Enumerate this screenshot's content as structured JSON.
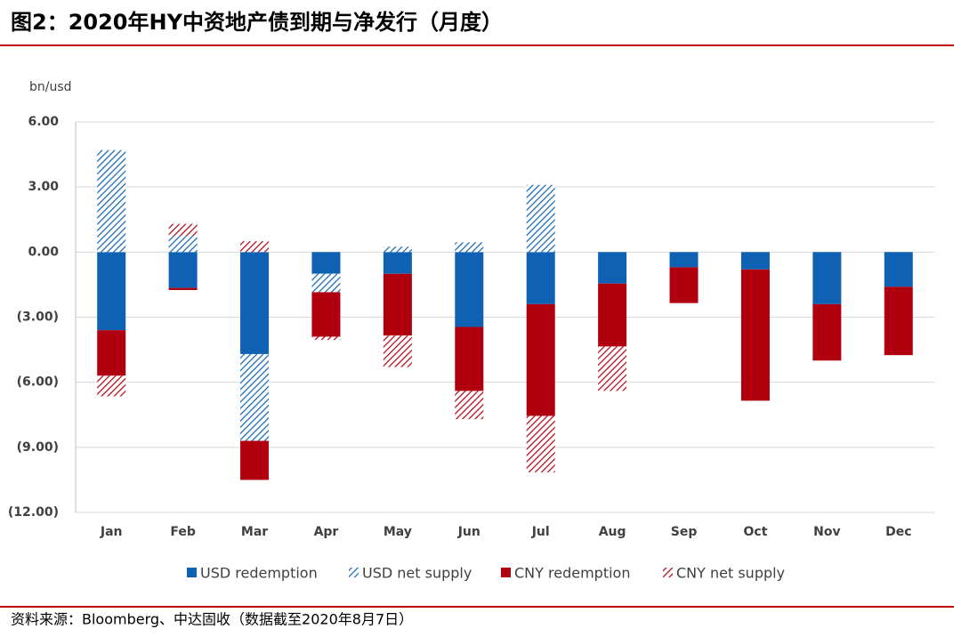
{
  "chart_data": {
    "type": "stacked_bar",
    "title": "图2：2020年HY中资地产债到期与净发行（月度）",
    "source": "资料来源：Bloomberg、中达固收（数据截至2020年8月7日）",
    "y_label": "bn/usd",
    "categories": [
      "Jan",
      "Feb",
      "Mar",
      "Apr",
      "May",
      "Jun",
      "Jul",
      "Aug",
      "Sep",
      "Oct",
      "Nov",
      "Dec"
    ],
    "series": [
      {
        "name": "USD redemption",
        "color": "#0f62b3",
        "hatched": false,
        "values": [
          -3.6,
          -1.65,
          -4.7,
          -1.0,
          -1.0,
          -3.45,
          -2.4,
          -1.45,
          -0.7,
          -0.8,
          -2.4,
          -1.6
        ]
      },
      {
        "name": "USD net supply",
        "color": "#0f62b3",
        "hatched": true,
        "values": [
          4.7,
          0.75,
          -4.0,
          -0.85,
          0.25,
          0.45,
          3.1,
          0,
          0,
          0,
          0,
          0
        ]
      },
      {
        "name": "CNY redemption",
        "color": "#b0000f",
        "hatched": false,
        "values": [
          -2.1,
          -0.1,
          -1.8,
          -2.05,
          -2.85,
          -2.95,
          -5.15,
          -2.9,
          -1.65,
          -6.05,
          -2.6,
          -3.15
        ]
      },
      {
        "name": "CNY net supply",
        "color": "#b0000f",
        "hatched": true,
        "values": [
          -0.95,
          0.55,
          0.5,
          -0.15,
          -1.45,
          -1.3,
          -2.6,
          -2.05,
          0,
          0,
          0,
          0
        ]
      }
    ],
    "ylim": [
      -12,
      6
    ],
    "yticks": [
      {
        "value": 6,
        "label": "6.00"
      },
      {
        "value": 3,
        "label": "3.00"
      },
      {
        "value": 0,
        "label": "0.00"
      },
      {
        "value": -3,
        "label": "(3.00)"
      },
      {
        "value": -6,
        "label": "(6.00)"
      },
      {
        "value": -9,
        "label": "(9.00)"
      },
      {
        "value": -12,
        "label": "(12.00)"
      }
    ],
    "grid": true,
    "legend": "bottom"
  }
}
